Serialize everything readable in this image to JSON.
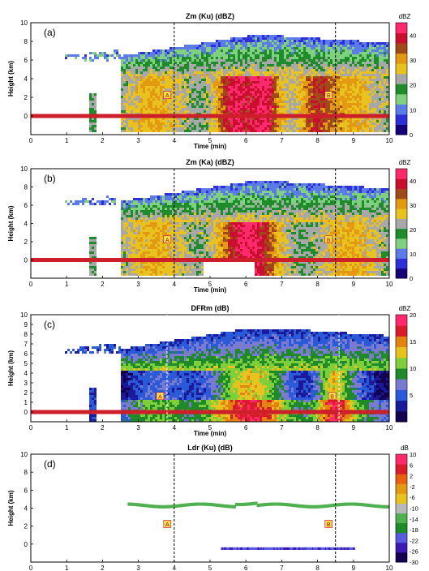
{
  "chart_data": [
    {
      "type": "heatmap",
      "panel_label": "(a)",
      "title": "Zm (Ku) (dBZ)",
      "xlabel": "Time (min)",
      "ylabel": "Height (km)",
      "xlim": [
        0,
        10
      ],
      "ylim": [
        -2,
        10
      ],
      "x_ticks": [
        0,
        1,
        2,
        3,
        4,
        5,
        6,
        7,
        8,
        9,
        10
      ],
      "y_ticks": [
        0,
        2,
        4,
        6,
        8,
        10
      ],
      "colorbar_unit": "dBZ",
      "colorbar_ticks": [
        0,
        10,
        20,
        30,
        40
      ],
      "clim": [
        0,
        45
      ],
      "markers": [
        {
          "label": "A",
          "time": 4.0
        },
        {
          "label": "B",
          "time": 8.5
        }
      ],
      "field": {
        "cloud_top_start": 2.5,
        "echo_top_km": 8.7,
        "melting_layer_km": 4.3,
        "surface_line_km": 0.0,
        "early_echo_time": 1.7,
        "value_low": 10,
        "value_high": 42,
        "strong_cores": [
          {
            "t": 5.6,
            "w": 0.5
          },
          {
            "t": 6.5,
            "w": 0.4
          },
          {
            "t": 7.9,
            "w": 0.5
          }
        ]
      }
    },
    {
      "type": "heatmap",
      "panel_label": "(b)",
      "title": "Zm (Ka) (dBZ)",
      "xlabel": "Time (min)",
      "ylabel": "Height (km)",
      "xlim": [
        0,
        10
      ],
      "ylim": [
        -2,
        10
      ],
      "x_ticks": [
        0,
        1,
        2,
        3,
        4,
        5,
        6,
        7,
        8,
        9,
        10
      ],
      "y_ticks": [
        0,
        2,
        4,
        6,
        8,
        10
      ],
      "colorbar_unit": "dBZ",
      "colorbar_ticks": [
        0,
        10,
        20,
        30,
        40
      ],
      "clim": [
        0,
        45
      ],
      "markers": [
        {
          "label": "A",
          "time": 4.0
        },
        {
          "label": "B",
          "time": 8.5
        }
      ],
      "field": {
        "cloud_top_start": 2.5,
        "echo_top_km": 8.7,
        "melting_layer_km": 4.3,
        "surface_line_km": 0.0,
        "early_echo_time": 1.7,
        "value_low": 8,
        "value_high": 32,
        "strong_cores": [
          {
            "t": 6.0,
            "w": 0.8
          }
        ]
      }
    },
    {
      "type": "heatmap",
      "panel_label": "(c)",
      "title": "DFRm (dB)",
      "xlabel": "Time (min)",
      "ylabel": "Height (km)",
      "xlim": [
        0,
        10
      ],
      "ylim": [
        -1,
        10
      ],
      "x_ticks": [
        0,
        1,
        2,
        3,
        4,
        5,
        6,
        7,
        8,
        9,
        10
      ],
      "y_ticks": [
        0,
        1,
        2,
        3,
        4,
        5,
        6,
        7,
        8,
        9,
        10
      ],
      "colorbar_unit": "dBZ",
      "colorbar_ticks": [
        5,
        10,
        15,
        20
      ],
      "clim": [
        0,
        20
      ],
      "markers": [
        {
          "label": "A",
          "time": 3.8
        },
        {
          "label": "B",
          "time": 8.6
        }
      ],
      "field": {
        "cloud_top_start": 2.5,
        "echo_top_km": 8.7,
        "melting_layer_km": 4.3,
        "surface_line_km": 0.0,
        "early_echo_time": 1.7,
        "value_low": 2,
        "value_high": 18,
        "strong_cores": [
          {
            "t": 6.0,
            "w": 1.6
          },
          {
            "t": 8.4,
            "w": 0.5
          }
        ]
      }
    },
    {
      "type": "heatmap",
      "panel_label": "(d)",
      "title": "Ldr (Ku) (dB)",
      "xlabel": "Time (min)",
      "ylabel": "Height (km)",
      "xlim": [
        0,
        10
      ],
      "ylim": [
        -2,
        10
      ],
      "x_ticks": [
        0,
        1,
        2,
        3,
        4,
        5,
        6,
        7,
        8,
        9,
        10
      ],
      "y_ticks": [
        0,
        2,
        4,
        6,
        8,
        10
      ],
      "colorbar_unit": "dB",
      "colorbar_ticks": [
        -30,
        -26,
        -22,
        -18,
        -14,
        -10,
        -6,
        -2,
        2,
        6,
        10
      ],
      "clim": [
        -30,
        10
      ],
      "markers": [
        {
          "label": "A",
          "time": 4.0
        },
        {
          "label": "B",
          "time": 8.5
        }
      ],
      "field": {
        "band_km": 4.3,
        "band_start": 2.7,
        "band_end": 10.0,
        "low_band_km": -0.5,
        "low_band_start": 5.3,
        "low_band_end": 9.0
      }
    }
  ],
  "colors": {
    "dbz_scale": [
      "#140078",
      "#2f2fd6",
      "#5a7be8",
      "#7fd07f",
      "#1e8c2a",
      "#a8a8a8",
      "#e8c21f",
      "#e39a12",
      "#a04a1a",
      "#c8102e",
      "#ff2a6e"
    ],
    "dfr_scale": [
      "#140050",
      "#1a1a9a",
      "#2a5ad8",
      "#7a7ad0",
      "#1f8a2a",
      "#7fcf3a",
      "#e8c21f",
      "#e38412",
      "#d81c2a",
      "#ff2a6e"
    ],
    "ldr_scale": [
      "#140050",
      "#3a1ab0",
      "#5a5ae0",
      "#1f8a2a",
      "#4fb04f",
      "#b8b8b8",
      "#e8c21f",
      "#e39a12",
      "#e86012",
      "#d81c2a",
      "#ff2a6e"
    ],
    "marker_fill": "#f2e34a",
    "surface_line": "#cc1f2a"
  }
}
